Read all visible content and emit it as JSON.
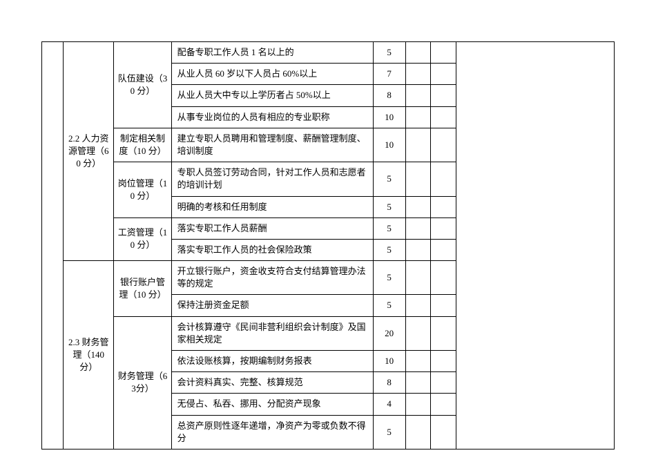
{
  "table": {
    "sections": [
      {
        "label": "2.2 人力资源管理（60 分）"
      },
      {
        "label": "2.3 财务管理（140 分）"
      }
    ],
    "groups": [
      {
        "label": "队伍建设（30 分）"
      },
      {
        "label": "制定相关制度（10 分）"
      },
      {
        "label": "岗位管理（10 分）"
      },
      {
        "label": "工资管理（10 分）"
      },
      {
        "label": "银行账户管理（10 分）"
      },
      {
        "label": "财务管理（63分）"
      }
    ],
    "rows": [
      {
        "item": "配备专职工作人员 1 名以上的",
        "score": "5"
      },
      {
        "item": "从业人员 60 岁以下人员占 60%以上",
        "score": "7"
      },
      {
        "item": "从业人员大中专以上学历者占 50%以上",
        "score": "8"
      },
      {
        "item": "从事专业岗位的人员有相应的专业职称",
        "score": "10"
      },
      {
        "item": "建立专职人员聘用和管理制度、薪酬管理制度、培训制度",
        "score": "10"
      },
      {
        "item": "专职人员签订劳动合同，针对工作人员和志愿者的培训计划",
        "score": "5"
      },
      {
        "item": "明确的考核和任用制度",
        "score": "5"
      },
      {
        "item": "落实专职工作人员薪酬",
        "score": "5"
      },
      {
        "item": "落实专职工作人员的社会保险政策",
        "score": "5"
      },
      {
        "item": "开立银行账户，资金收支符合支付结算管理办法等的规定",
        "score": "5"
      },
      {
        "item": "保持注册资金足额",
        "score": "5"
      },
      {
        "item": "会计核算遵守《民间非营利组织会计制度》及国家相关规定",
        "score": "20"
      },
      {
        "item": "依法设账核算，按期编制财务报表",
        "score": "10"
      },
      {
        "item": "会计资料真实、完整、核算规范",
        "score": "8"
      },
      {
        "item": "无侵占、私吞、挪用、分配资产现象",
        "score": "4"
      },
      {
        "item": "总资产原则性逐年递增，净资产为零或负数不得分",
        "score": "5"
      }
    ]
  }
}
